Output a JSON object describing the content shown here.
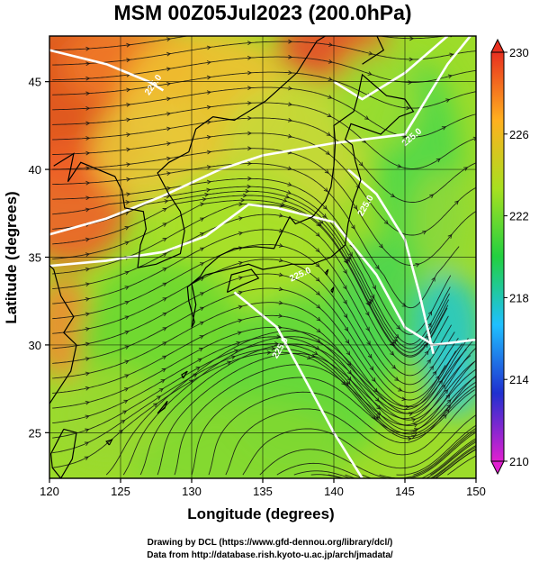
{
  "chart_data": {
    "type": "heatmap",
    "title": "MSM 00Z05Jul2023 (200.0hPa)",
    "xlabel": "Longitude (degrees)",
    "ylabel": "Latitude  (degrees)",
    "xlim": [
      120,
      150
    ],
    "ylim": [
      22.4,
      47.6
    ],
    "x_ticks": [
      120,
      125,
      130,
      135,
      140,
      145,
      150
    ],
    "y_ticks": [
      25,
      30,
      35,
      40,
      45
    ],
    "colorbar": {
      "min": 210,
      "max": 230,
      "ticks": [
        210,
        214,
        218,
        222,
        226,
        230
      ],
      "colors": [
        "#e020d0",
        "#2030d0",
        "#20c0ff",
        "#22d040",
        "#a8e020",
        "#ffb020",
        "#e83020"
      ]
    },
    "grid": true,
    "overlays": [
      "streamlines",
      "temperature contours",
      "coastlines"
    ],
    "contour_labels": [
      "225.0",
      "225.0",
      "225.0",
      "225.0",
      "225.0"
    ]
  },
  "credits": {
    "line1": "Drawing by DCL (https://www.gfd-dennou.org/library/dcl/)",
    "line2": "Data from http://database.rish.kyoto-u.ac.jp/arch/jmadata/"
  }
}
